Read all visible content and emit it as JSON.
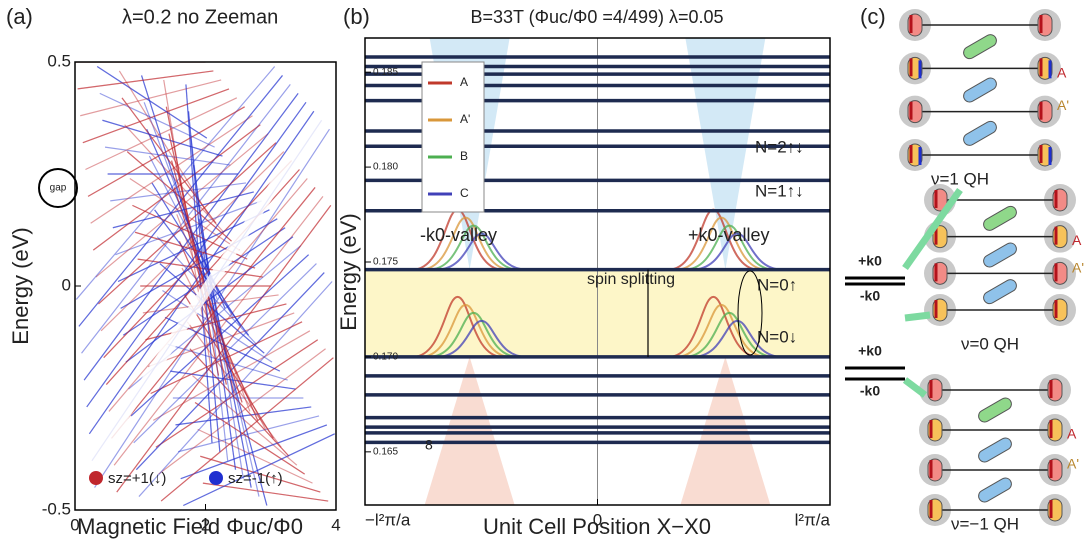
{
  "chart_data": [
    {
      "type": "butterfly",
      "panel_label": "(a)",
      "title": "λ=0.2  no Zeeman",
      "y_label": "Energy (eV)",
      "x_label": "Magnetic Field Φuc/Φ0",
      "xlim": [
        0,
        4
      ],
      "xticks": [
        0,
        2,
        4
      ],
      "ylim": [
        -0.5,
        0.5
      ],
      "yticks": [
        -0.5,
        0,
        0.5
      ],
      "annotation": "gap",
      "series": [
        {
          "name": "sz=+1(↓)",
          "color": "#c0272d"
        },
        {
          "name": "sz=-1(↑)",
          "color": "#1f2fd0"
        }
      ]
    },
    {
      "type": "levels",
      "panel_label": "(b)",
      "title": "B=33T (Φuc/Φ0 =4/499)  λ=0.05",
      "y_label": "Energy (eV)",
      "x_label": "Unit Cell Position X−X0",
      "xlim": [
        -1,
        1
      ],
      "xticks": [
        {
          "value": -1,
          "label": "−l²π/a"
        },
        0,
        {
          "value": 1,
          "label": "l²π/a"
        }
      ],
      "ylim": [
        0.1622,
        0.1868
      ],
      "yticks": [
        0.165,
        {
          "value": 0.17,
          "label": "0.170"
        },
        0.175,
        {
          "value": 0.18,
          "label": "0.180"
        },
        0.185
      ],
      "levels": [
        0.1858,
        0.1853,
        0.1849,
        0.1843,
        0.1835,
        0.1819,
        0.1811,
        0.1793,
        0.1777,
        0.1746,
        0.17,
        0.169,
        0.168,
        0.1668,
        0.1663,
        0.166,
        0.1655
      ],
      "band": [
        0.17,
        0.1746
      ],
      "band_color": "#fdf6c8",
      "level_color": "#1e2b50",
      "annotations": [
        "N=2↑↓",
        "N=1↑↓",
        "-k0-valley",
        "+k0-valley",
        "N=0↑",
        "N=0↓",
        "spin splitting",
        "8"
      ],
      "series": [
        {
          "name": "A",
          "color": "#c0392b"
        },
        {
          "name": "A'",
          "color": "#d9973a"
        },
        {
          "name": "B",
          "color": "#4caf50"
        },
        {
          "name": "C",
          "color": "#4040b8"
        }
      ]
    }
  ],
  "panel_c": {
    "panel_label": "(c)",
    "sublattice_labels": [
      "A",
      "A'"
    ],
    "valley_labels": [
      "+k0",
      "-k0"
    ],
    "lattices": [
      {
        "label": "ν=1 QH"
      },
      {
        "label": "ν=0 QH"
      },
      {
        "label": "ν=−1 QH"
      }
    ]
  }
}
